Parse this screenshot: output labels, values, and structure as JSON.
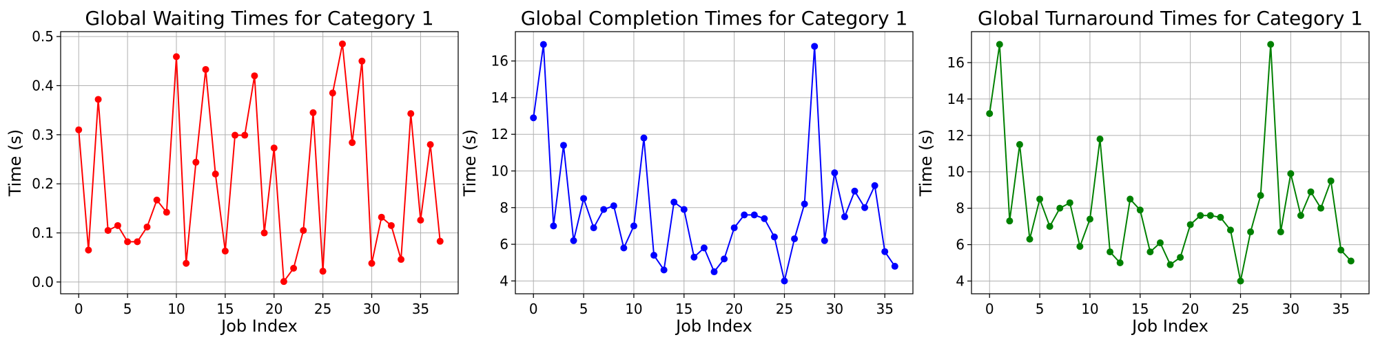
{
  "chart_data": [
    {
      "type": "line",
      "title": "Global Waiting Times for Category 1",
      "xlabel": "Job Index",
      "ylabel": "Time (s)",
      "xlim": [
        -1.85,
        38.85
      ],
      "ylim": [
        -0.024,
        0.51
      ],
      "xticks": [
        0,
        5,
        10,
        15,
        20,
        25,
        30,
        35
      ],
      "yticks": [
        0.0,
        0.1,
        0.2,
        0.3,
        0.4,
        0.5
      ],
      "ytick_labels": [
        "0.0",
        "0.1",
        "0.2",
        "0.3",
        "0.4",
        "0.5"
      ],
      "grid": true,
      "color": "#ff0000",
      "series": [
        {
          "values": [
            0.31,
            0.065,
            0.372,
            0.105,
            0.115,
            0.082,
            0.082,
            0.112,
            0.167,
            0.142,
            0.459,
            0.038,
            0.244,
            0.433,
            0.22,
            0.063,
            0.299,
            0.299,
            0.42,
            0.1,
            0.273,
            0.001,
            0.028,
            0.105,
            0.345,
            0.022,
            0.385,
            0.485,
            0.284,
            0.45,
            0.038,
            0.132,
            0.115,
            0.046,
            0.343,
            0.126,
            0.28,
            0.083
          ]
        }
      ]
    },
    {
      "type": "line",
      "title": "Global Completion Times for Category 1",
      "xlabel": "Job Index",
      "ylabel": "Time (s)",
      "xlim": [
        -1.8,
        37.8
      ],
      "ylim": [
        3.3,
        17.6
      ],
      "xticks": [
        0,
        5,
        10,
        15,
        20,
        25,
        30,
        35
      ],
      "yticks": [
        4,
        6,
        8,
        10,
        12,
        14,
        16
      ],
      "ytick_labels": [
        "4",
        "6",
        "8",
        "10",
        "12",
        "14",
        "16"
      ],
      "grid": true,
      "color": "#0000ff",
      "series": [
        {
          "values": [
            12.9,
            16.9,
            7.0,
            11.4,
            6.2,
            8.5,
            6.9,
            7.9,
            8.1,
            5.8,
            7.0,
            11.8,
            5.4,
            4.6,
            8.3,
            7.9,
            5.3,
            5.8,
            4.5,
            5.2,
            6.9,
            7.6,
            7.6,
            7.4,
            6.4,
            4.0,
            6.3,
            8.2,
            16.8,
            6.2,
            9.9,
            7.5,
            8.9,
            8.0,
            9.2,
            5.6,
            4.8
          ]
        }
      ]
    },
    {
      "type": "line",
      "title": "Global Turnaround Times for Category 1",
      "xlabel": "Job Index",
      "ylabel": "Time (s)",
      "xlim": [
        -1.8,
        37.8
      ],
      "ylim": [
        3.3,
        17.7
      ],
      "xticks": [
        0,
        5,
        10,
        15,
        20,
        25,
        30,
        35
      ],
      "yticks": [
        4,
        6,
        8,
        10,
        12,
        14,
        16
      ],
      "ytick_labels": [
        "4",
        "6",
        "8",
        "10",
        "12",
        "14",
        "16"
      ],
      "grid": true,
      "color": "#008000",
      "series": [
        {
          "values": [
            13.2,
            17.0,
            7.3,
            11.5,
            6.3,
            8.5,
            7.0,
            8.0,
            8.3,
            5.9,
            7.4,
            11.8,
            5.6,
            5.0,
            8.5,
            7.9,
            5.6,
            6.1,
            4.9,
            5.3,
            7.1,
            7.6,
            7.6,
            7.5,
            6.8,
            4.0,
            6.7,
            8.7,
            17.0,
            6.7,
            9.9,
            7.6,
            8.9,
            8.0,
            9.5,
            5.7,
            5.1
          ]
        }
      ]
    }
  ]
}
